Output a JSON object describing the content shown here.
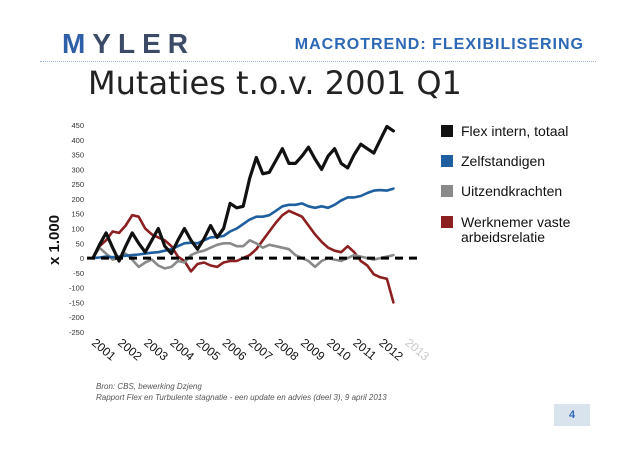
{
  "header": {
    "logo_first": "M",
    "logo_rest": "YLER",
    "topic": "MACROTREND: FLEXIBILISERING"
  },
  "title": "Mutaties t.o.v. 2001 Q1",
  "source": {
    "line1": "Bron: CBS, bewerking Dzjeng",
    "line2": "Rapport Flex en Turbulente stagnatie - een update en advies (deel 3), 9 april 2013"
  },
  "page_number": "4",
  "colors": {
    "flex": "#111111",
    "zelf": "#1f5fa0",
    "uitzend": "#8a8a8a",
    "werknemer": "#8c1f1f"
  },
  "chart_data": {
    "type": "line",
    "title": "Mutaties t.o.v. 2001 Q1",
    "ylabel": "x 1.000",
    "xlabel": "",
    "ylim": [
      -250,
      450
    ],
    "yticks": [
      450,
      400,
      350,
      300,
      250,
      200,
      150,
      100,
      50,
      0,
      -50,
      -100,
      -150,
      -200,
      -250
    ],
    "xlim": [
      2001,
      2013.25
    ],
    "x_tick_labels": [
      "2001",
      "2002",
      "2003",
      "2004",
      "2005",
      "2006",
      "2007",
      "2008",
      "2009",
      "2010",
      "2011",
      "2012",
      "2013"
    ],
    "zero_line": "dashed",
    "legend_position": "right",
    "series": [
      {
        "name": "Flex intern, totaal",
        "color_key": "flex",
        "x": [
          2001,
          2001.25,
          2001.5,
          2001.75,
          2002,
          2002.25,
          2002.5,
          2002.75,
          2003,
          2003.25,
          2003.5,
          2003.75,
          2004,
          2004.25,
          2004.5,
          2004.75,
          2005,
          2005.25,
          2005.5,
          2005.75,
          2006,
          2006.25,
          2006.5,
          2006.75,
          2007,
          2007.25,
          2007.5,
          2007.75,
          2008,
          2008.25,
          2008.5,
          2008.75,
          2009,
          2009.25,
          2009.5,
          2009.75,
          2010,
          2010.25,
          2010.5,
          2010.75,
          2011,
          2011.25,
          2011.5,
          2011.75,
          2012,
          2012.25,
          2012.5
        ],
        "values": [
          0,
          45,
          85,
          35,
          -10,
          40,
          85,
          50,
          20,
          60,
          100,
          40,
          15,
          60,
          100,
          60,
          30,
          65,
          110,
          70,
          100,
          185,
          170,
          175,
          270,
          340,
          285,
          290,
          330,
          370,
          320,
          320,
          345,
          375,
          335,
          300,
          345,
          370,
          320,
          305,
          350,
          385,
          370,
          355,
          400,
          445,
          430
        ]
      },
      {
        "name": "Zelfstandigen",
        "color_key": "zelf",
        "x": [
          2001,
          2001.25,
          2001.5,
          2001.75,
          2002,
          2002.25,
          2002.5,
          2002.75,
          2003,
          2003.25,
          2003.5,
          2003.75,
          2004,
          2004.25,
          2004.5,
          2004.75,
          2005,
          2005.25,
          2005.5,
          2005.75,
          2006,
          2006.25,
          2006.5,
          2006.75,
          2007,
          2007.25,
          2007.5,
          2007.75,
          2008,
          2008.25,
          2008.5,
          2008.75,
          2009,
          2009.25,
          2009.5,
          2009.75,
          2010,
          2010.25,
          2010.5,
          2010.75,
          2011,
          2011.25,
          2011.5,
          2011.75,
          2012,
          2012.25,
          2012.5
        ],
        "values": [
          0,
          2,
          5,
          3,
          5,
          8,
          10,
          12,
          15,
          18,
          20,
          25,
          30,
          40,
          50,
          52,
          50,
          60,
          70,
          72,
          75,
          90,
          100,
          115,
          130,
          140,
          140,
          145,
          160,
          175,
          180,
          180,
          185,
          175,
          170,
          175,
          170,
          180,
          195,
          205,
          205,
          210,
          220,
          228,
          230,
          228,
          235
        ]
      },
      {
        "name": "Uitzendkrachten",
        "color_key": "uitzend",
        "x": [
          2001,
          2001.25,
          2001.5,
          2001.75,
          2002,
          2002.25,
          2002.5,
          2002.75,
          2003,
          2003.25,
          2003.5,
          2003.75,
          2004,
          2004.25,
          2004.5,
          2004.75,
          2005,
          2005.25,
          2005.5,
          2005.75,
          2006,
          2006.25,
          2006.5,
          2006.75,
          2007,
          2007.25,
          2007.5,
          2007.75,
          2008,
          2008.25,
          2008.5,
          2008.75,
          2009,
          2009.25,
          2009.5,
          2009.75,
          2010,
          2010.25,
          2010.5,
          2010.75,
          2011,
          2011.25,
          2011.5,
          2011.75,
          2012,
          2012.25,
          2012.5
        ],
        "values": [
          0,
          35,
          15,
          -5,
          0,
          15,
          -5,
          -30,
          -15,
          -5,
          -25,
          -35,
          -30,
          -10,
          -15,
          10,
          20,
          25,
          35,
          45,
          50,
          50,
          40,
          40,
          60,
          50,
          35,
          45,
          40,
          35,
          30,
          10,
          0,
          -10,
          -30,
          -10,
          0,
          -5,
          -10,
          0,
          10,
          5,
          0,
          -5,
          0,
          5,
          10
        ]
      },
      {
        "name": "Werknemer vaste arbeidsrelatie",
        "color_key": "werknemer",
        "x": [
          2001,
          2001.25,
          2001.5,
          2001.75,
          2002,
          2002.25,
          2002.5,
          2002.75,
          2003,
          2003.25,
          2003.5,
          2003.75,
          2004,
          2004.25,
          2004.5,
          2004.75,
          2005,
          2005.25,
          2005.5,
          2005.75,
          2006,
          2006.25,
          2006.5,
          2006.75,
          2007,
          2007.25,
          2007.5,
          2007.75,
          2008,
          2008.25,
          2008.5,
          2008.75,
          2009,
          2009.25,
          2009.5,
          2009.75,
          2010,
          2010.25,
          2010.5,
          2010.75,
          2011,
          2011.25,
          2011.5,
          2011.75,
          2012,
          2012.25,
          2012.5
        ],
        "values": [
          0,
          40,
          60,
          90,
          85,
          110,
          145,
          140,
          100,
          80,
          70,
          60,
          40,
          5,
          -10,
          -45,
          -20,
          -15,
          -25,
          -30,
          -15,
          -10,
          -10,
          0,
          10,
          30,
          60,
          90,
          120,
          145,
          160,
          150,
          140,
          110,
          80,
          55,
          35,
          25,
          20,
          40,
          20,
          -10,
          -25,
          -55,
          -65,
          -70,
          -150
        ]
      }
    ]
  }
}
